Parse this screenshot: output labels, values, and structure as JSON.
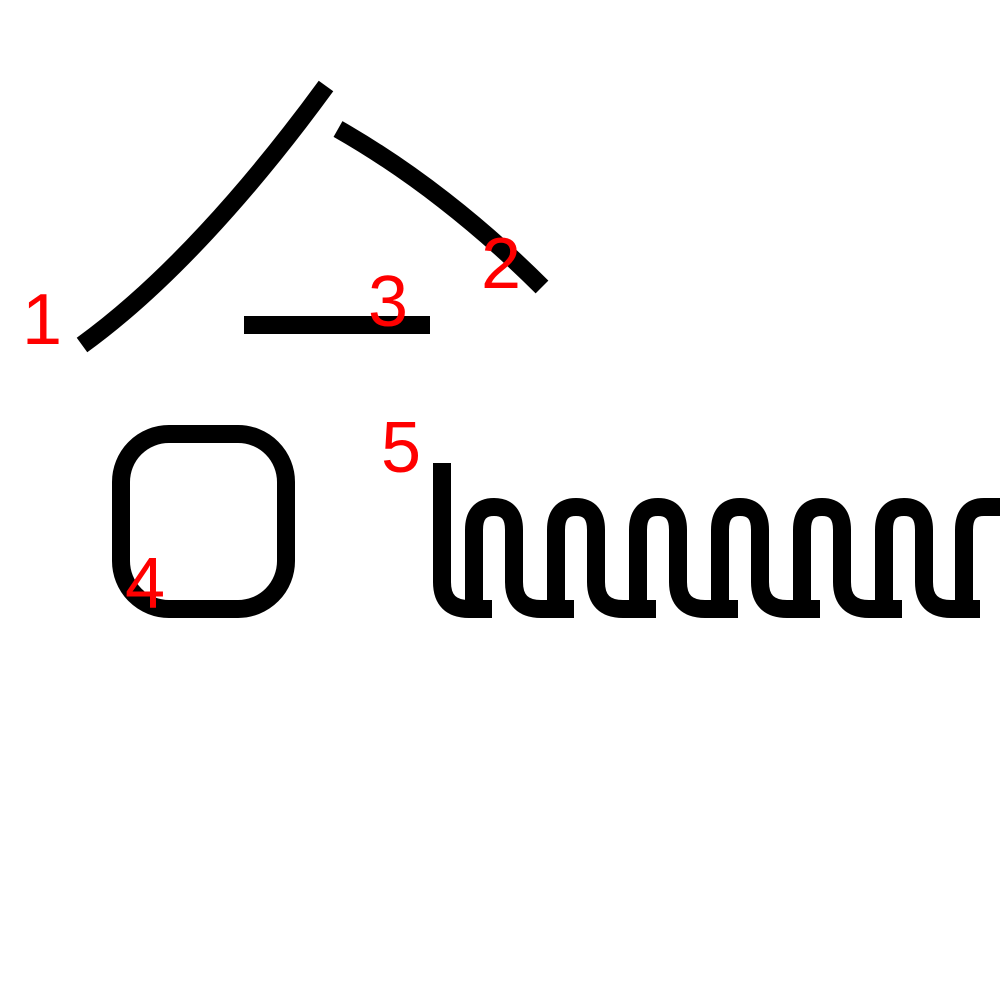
{
  "colors": {
    "background": "#ffffff",
    "stroke": "#000000",
    "label": "#ff0000"
  },
  "strokes": [
    {
      "id": "stroke-1",
      "label": "1",
      "shape": "curved-left-falling"
    },
    {
      "id": "stroke-2",
      "label": "2",
      "shape": "curved-right-falling"
    },
    {
      "id": "stroke-3",
      "label": "3",
      "shape": "horizontal-line"
    },
    {
      "id": "stroke-4",
      "label": "4",
      "shape": "rounded-square"
    },
    {
      "id": "stroke-5",
      "label": "5",
      "shape": "zigzag-wave"
    }
  ]
}
